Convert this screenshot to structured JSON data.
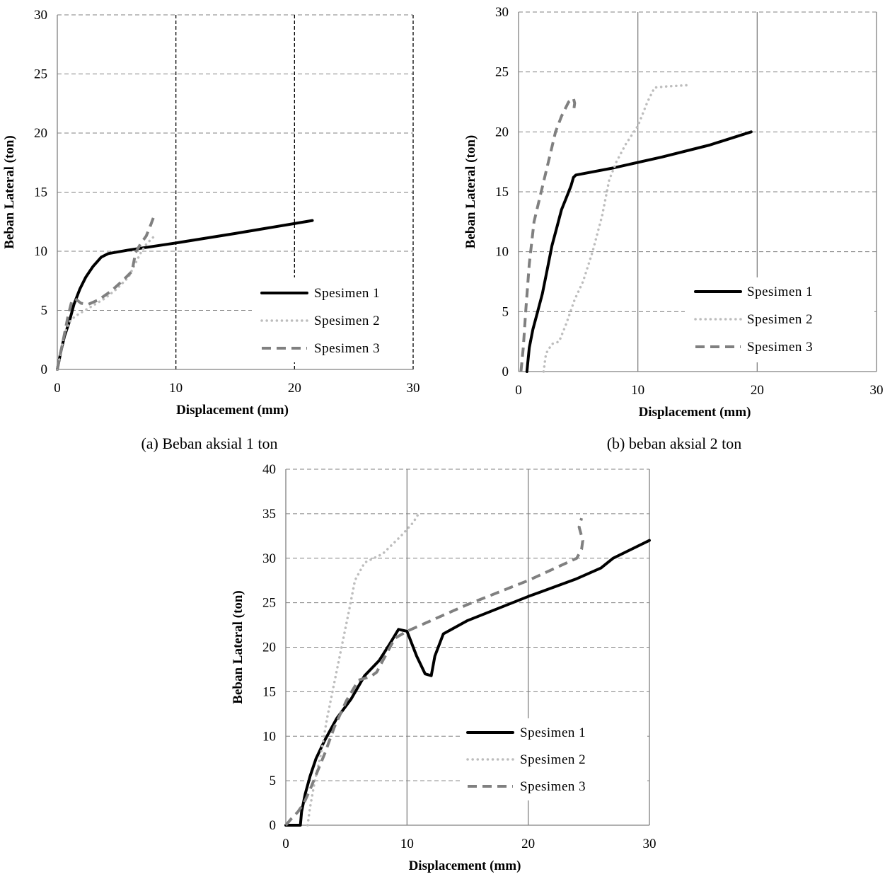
{
  "colors": {
    "spesimen1": "#000000",
    "spesimen2": "#bdbdbd",
    "spesimen3": "#808080",
    "grid": "#808080"
  },
  "chart_data": [
    {
      "type": "line",
      "caption": "(a) Beban aksial 1 ton",
      "xlabel": "Displacement (mm)",
      "ylabel": "Beban Lateral (ton)",
      "xlim": [
        0,
        30
      ],
      "ylim": [
        0,
        30
      ],
      "xticks": [
        "0",
        "10",
        "20",
        "30"
      ],
      "yticks": [
        "0",
        "5",
        "10",
        "15",
        "20",
        "25",
        "30"
      ],
      "legend_position": "bottom-right",
      "series": [
        {
          "name": "Spesimen 1",
          "style": "solid",
          "x": [
            0,
            0.3,
            0.6,
            1.0,
            1.4,
            1.9,
            2.4,
            3.0,
            3.7,
            4.3,
            6,
            10,
            15,
            21.5
          ],
          "y": [
            0,
            1.5,
            2.8,
            4.0,
            5.5,
            6.8,
            7.8,
            8.7,
            9.5,
            9.8,
            10.1,
            10.7,
            11.5,
            12.6
          ]
        },
        {
          "name": "Spesimen 2",
          "style": "dotted",
          "x": [
            0,
            0.3,
            0.6,
            1.0,
            1.5,
            2.0,
            3.0,
            4.0,
            5.0,
            6.0,
            6.5,
            7.0,
            7.5,
            8.2
          ],
          "y": [
            0,
            1.5,
            3.0,
            4.0,
            4.5,
            4.8,
            5.4,
            6.0,
            6.8,
            7.8,
            8.8,
            9.8,
            10.6,
            11.3
          ]
        },
        {
          "name": "Spesimen 3",
          "style": "dashed",
          "x": [
            0,
            0.3,
            0.6,
            0.9,
            1.2,
            1.5,
            2.0,
            2.6,
            3.5,
            4.5,
            5.5,
            6.3,
            6.6,
            7.0,
            7.5,
            7.9,
            8.2
          ],
          "y": [
            0,
            1.5,
            3.0,
            4.5,
            5.7,
            6.0,
            5.6,
            5.5,
            5.9,
            6.6,
            7.5,
            8.3,
            9.9,
            10.6,
            11.3,
            12.3,
            13.1
          ]
        }
      ]
    },
    {
      "type": "line",
      "caption": "(b) beban aksial 2 ton",
      "xlabel": "Displacement (mm)",
      "ylabel": "Beban Lateral (ton)",
      "xlim": [
        0,
        30
      ],
      "ylim": [
        0,
        30
      ],
      "xticks": [
        "0",
        "10",
        "20",
        "30"
      ],
      "yticks": [
        "0",
        "5",
        "10",
        "15",
        "20",
        "25",
        "30"
      ],
      "legend_position": "bottom-right",
      "series": [
        {
          "name": "Spesimen 1",
          "style": "solid",
          "x": [
            0.7,
            0.9,
            1.2,
            1.6,
            2.0,
            2.4,
            2.8,
            3.2,
            3.6,
            4.0,
            4.4,
            4.6,
            4.8,
            8,
            12,
            16,
            19.5
          ],
          "y": [
            0,
            2.0,
            3.5,
            5.0,
            6.5,
            8.5,
            10.5,
            12.0,
            13.5,
            14.5,
            15.5,
            16.2,
            16.4,
            17.0,
            17.9,
            18.9,
            20.0
          ]
        },
        {
          "name": "Spesimen 2",
          "style": "dotted",
          "x": [
            2.1,
            2.3,
            2.8,
            3.4,
            4.0,
            4.7,
            5.4,
            6.2,
            7.0,
            7.6,
            8.2,
            9.0,
            10.0,
            10.8,
            11.4,
            12.5,
            14.3
          ],
          "y": [
            0,
            1.5,
            2.3,
            2.5,
            4.0,
            6.0,
            7.5,
            10.0,
            13.0,
            16.0,
            17.5,
            19.0,
            20.5,
            22.5,
            23.7,
            23.8,
            23.9
          ]
        },
        {
          "name": "Spesimen 3",
          "style": "dashed",
          "x": [
            0.2,
            0.4,
            0.6,
            0.9,
            1.3,
            1.9,
            2.5,
            3.1,
            3.6,
            4.2,
            4.6,
            4.7,
            4.6
          ],
          "y": [
            0,
            2.0,
            5.0,
            9.0,
            12.5,
            15.0,
            17.5,
            20.0,
            21.3,
            22.5,
            22.8,
            22.4,
            21.6
          ]
        }
      ]
    },
    {
      "type": "line",
      "caption": "",
      "xlabel": "Displacement (mm)",
      "ylabel": "Beban Lateral (ton)",
      "xlim": [
        0,
        30
      ],
      "ylim": [
        0,
        40
      ],
      "xticks": [
        "0",
        "10",
        "20",
        "30"
      ],
      "yticks": [
        "0",
        "5",
        "10",
        "15",
        "20",
        "25",
        "30",
        "35",
        "40"
      ],
      "legend_position": "bottom-right",
      "series": [
        {
          "name": "Spesimen 1",
          "style": "solid",
          "x": [
            0,
            0.5,
            1.2,
            1.3,
            1.6,
            2.0,
            2.5,
            3.2,
            4.2,
            5.4,
            6.5,
            7.7,
            8.5,
            9.3,
            10.0,
            10.8,
            11.5,
            12.0,
            12.3,
            13.0,
            15,
            20,
            24,
            26,
            27,
            30
          ],
          "y": [
            0,
            0,
            0,
            1.5,
            3.5,
            5.5,
            7.5,
            9.5,
            12.0,
            14.2,
            16.8,
            18.5,
            20.2,
            22.0,
            21.8,
            19.0,
            17.0,
            16.8,
            19.0,
            21.5,
            23.0,
            25.7,
            27.7,
            28.9,
            30.0,
            32.0
          ]
        },
        {
          "name": "Spesimen 2",
          "style": "dotted",
          "x": [
            1.8,
            2.0,
            2.4,
            2.9,
            3.4,
            4.0,
            4.6,
            5.2,
            5.7,
            6.5,
            8.0,
            9.5,
            10.5,
            11.0
          ],
          "y": [
            0,
            2.0,
            5.0,
            8.0,
            12.0,
            16.0,
            20.0,
            24.0,
            27.5,
            29.5,
            30.5,
            32.5,
            34.0,
            35.1
          ]
        },
        {
          "name": "Spesimen 3",
          "style": "dashed",
          "x": [
            0,
            0.5,
            1.0,
            1.5,
            2.0,
            2.6,
            3.2,
            4.0,
            5.0,
            6.0,
            7.0,
            7.5,
            8.0,
            9.0,
            10.0,
            15,
            20,
            24,
            24.4,
            24.5,
            24.2,
            24.4
          ],
          "y": [
            0,
            0.8,
            1.5,
            2.5,
            4.0,
            6.0,
            8.0,
            11.0,
            14.0,
            16.3,
            16.7,
            17.2,
            18.5,
            21.0,
            21.8,
            24.8,
            27.5,
            30.0,
            31.0,
            32.0,
            33.5,
            34.5
          ]
        }
      ]
    }
  ]
}
